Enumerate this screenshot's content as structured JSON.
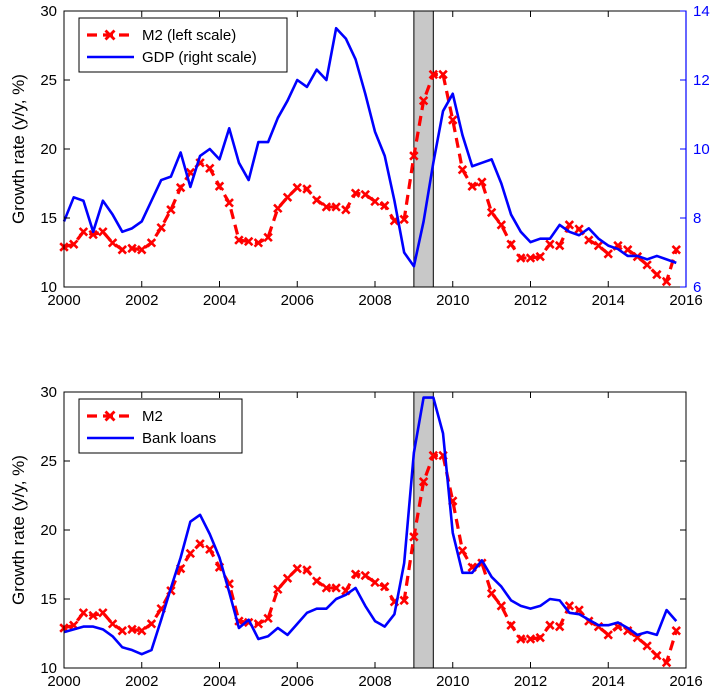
{
  "chart_data": [
    {
      "type": "line",
      "ylabel": "Growth rate (y/y, %)",
      "y2label": "",
      "xlim": [
        2000,
        2016
      ],
      "ylim": [
        10,
        30
      ],
      "y2lim": [
        6,
        14
      ],
      "xticks": [
        "2000",
        "2002",
        "2004",
        "2006",
        "2008",
        "2010",
        "2012",
        "2014",
        "2016"
      ],
      "yticks": [
        "10",
        "15",
        "20",
        "25",
        "30"
      ],
      "y2ticks": [
        "6",
        "8",
        "10",
        "12",
        "14"
      ],
      "shade": [
        2009.0,
        2009.5
      ],
      "legend_position": "top-left",
      "colors": {
        "m2": "#ff0000",
        "gdp": "#0000ff",
        "shade": "#c8c8c8"
      },
      "series": [
        {
          "name": "M2 (left scale)",
          "axis": "left",
          "marker": "x",
          "style": "dashed",
          "x": [
            2000.0,
            2000.25,
            2000.5,
            2000.75,
            2001.0,
            2001.25,
            2001.5,
            2001.75,
            2002.0,
            2002.25,
            2002.5,
            2002.75,
            2003.0,
            2003.25,
            2003.5,
            2003.75,
            2004.0,
            2004.25,
            2004.5,
            2004.75,
            2005.0,
            2005.25,
            2005.5,
            2005.75,
            2006.0,
            2006.25,
            2006.5,
            2006.75,
            2007.0,
            2007.25,
            2007.5,
            2007.75,
            2008.0,
            2008.25,
            2008.5,
            2008.75,
            2009.0,
            2009.25,
            2009.5,
            2009.75,
            2010.0,
            2010.25,
            2010.5,
            2010.75,
            2011.0,
            2011.25,
            2011.5,
            2011.75,
            2012.0,
            2012.25,
            2012.5,
            2012.75,
            2013.0,
            2013.25,
            2013.5,
            2013.75,
            2014.0,
            2014.25,
            2014.5,
            2014.75,
            2015.0,
            2015.25,
            2015.5,
            2015.75
          ],
          "values": [
            12.9,
            13.1,
            14.0,
            13.8,
            14.0,
            13.2,
            12.7,
            12.8,
            12.7,
            13.2,
            14.3,
            15.6,
            17.2,
            18.3,
            19.0,
            18.6,
            17.3,
            16.1,
            13.4,
            13.3,
            13.2,
            13.6,
            15.7,
            16.5,
            17.2,
            17.1,
            16.3,
            15.8,
            15.8,
            15.6,
            16.8,
            16.7,
            16.2,
            15.9,
            14.8,
            14.9,
            19.5,
            23.5,
            25.4,
            25.4,
            22.1,
            18.5,
            17.3,
            17.6,
            15.4,
            14.5,
            13.1,
            12.1,
            12.1,
            12.2,
            13.1,
            13.0,
            14.5,
            14.2,
            13.4,
            13.0,
            12.4,
            13.0,
            12.7,
            12.2,
            11.6,
            10.9,
            10.4,
            12.7
          ]
        },
        {
          "name": "GDP (right scale)",
          "axis": "right",
          "marker": "none",
          "style": "solid",
          "x": [
            2000.0,
            2000.25,
            2000.5,
            2000.75,
            2001.0,
            2001.25,
            2001.5,
            2001.75,
            2002.0,
            2002.25,
            2002.5,
            2002.75,
            2003.0,
            2003.25,
            2003.5,
            2003.75,
            2004.0,
            2004.25,
            2004.5,
            2004.75,
            2005.0,
            2005.25,
            2005.5,
            2005.75,
            2006.0,
            2006.25,
            2006.5,
            2006.75,
            2007.0,
            2007.25,
            2007.5,
            2007.75,
            2008.0,
            2008.25,
            2008.5,
            2008.75,
            2009.0,
            2009.25,
            2009.5,
            2009.75,
            2010.0,
            2010.25,
            2010.5,
            2010.75,
            2011.0,
            2011.25,
            2011.5,
            2011.75,
            2012.0,
            2012.25,
            2012.5,
            2012.75,
            2013.0,
            2013.25,
            2013.5,
            2013.75,
            2014.0,
            2014.25,
            2014.5,
            2014.75,
            2015.0,
            2015.25,
            2015.5,
            2015.75
          ],
          "values": [
            7.9,
            8.6,
            8.5,
            7.6,
            8.5,
            8.1,
            7.6,
            7.7,
            7.9,
            8.5,
            9.1,
            9.2,
            9.9,
            8.9,
            9.8,
            10.0,
            9.7,
            10.6,
            9.6,
            9.1,
            10.2,
            10.2,
            10.9,
            11.4,
            12.0,
            11.8,
            12.3,
            12.0,
            13.5,
            13.2,
            12.6,
            11.6,
            10.5,
            9.8,
            8.5,
            7.0,
            6.6,
            7.9,
            9.6,
            11.1,
            11.6,
            10.4,
            9.5,
            9.6,
            9.7,
            9.0,
            8.1,
            7.6,
            7.3,
            7.4,
            7.4,
            7.8,
            7.6,
            7.5,
            7.7,
            7.4,
            7.2,
            7.1,
            6.9,
            6.9,
            6.8,
            6.9,
            6.8,
            6.7
          ]
        }
      ]
    },
    {
      "type": "line",
      "ylabel": "Growth rate (y/y, %)",
      "xlim": [
        2000,
        2016
      ],
      "ylim": [
        10,
        30
      ],
      "xticks": [
        "2000",
        "2002",
        "2004",
        "2006",
        "2008",
        "2010",
        "2012",
        "2014",
        "2016"
      ],
      "yticks": [
        "10",
        "15",
        "20",
        "25",
        "30"
      ],
      "shade": [
        2009.0,
        2009.5
      ],
      "legend_position": "top-left",
      "colors": {
        "m2": "#ff0000",
        "loans": "#0000ff",
        "shade": "#c8c8c8"
      },
      "series": [
        {
          "name": "M2",
          "axis": "left",
          "marker": "x",
          "style": "dashed",
          "x": [
            2000.0,
            2000.25,
            2000.5,
            2000.75,
            2001.0,
            2001.25,
            2001.5,
            2001.75,
            2002.0,
            2002.25,
            2002.5,
            2002.75,
            2003.0,
            2003.25,
            2003.5,
            2003.75,
            2004.0,
            2004.25,
            2004.5,
            2004.75,
            2005.0,
            2005.25,
            2005.5,
            2005.75,
            2006.0,
            2006.25,
            2006.5,
            2006.75,
            2007.0,
            2007.25,
            2007.5,
            2007.75,
            2008.0,
            2008.25,
            2008.5,
            2008.75,
            2009.0,
            2009.25,
            2009.5,
            2009.75,
            2010.0,
            2010.25,
            2010.5,
            2010.75,
            2011.0,
            2011.25,
            2011.5,
            2011.75,
            2012.0,
            2012.25,
            2012.5,
            2012.75,
            2013.0,
            2013.25,
            2013.5,
            2013.75,
            2014.0,
            2014.25,
            2014.5,
            2014.75,
            2015.0,
            2015.25,
            2015.5,
            2015.75
          ],
          "values": [
            12.9,
            13.1,
            14.0,
            13.8,
            14.0,
            13.2,
            12.7,
            12.8,
            12.7,
            13.2,
            14.3,
            15.6,
            17.2,
            18.3,
            19.0,
            18.6,
            17.3,
            16.1,
            13.4,
            13.3,
            13.2,
            13.6,
            15.7,
            16.5,
            17.2,
            17.1,
            16.3,
            15.8,
            15.8,
            15.6,
            16.8,
            16.7,
            16.2,
            15.9,
            14.8,
            14.9,
            19.5,
            23.5,
            25.4,
            25.4,
            22.1,
            18.5,
            17.3,
            17.6,
            15.4,
            14.5,
            13.1,
            12.1,
            12.1,
            12.2,
            13.1,
            13.0,
            14.5,
            14.2,
            13.4,
            13.0,
            12.4,
            13.0,
            12.7,
            12.2,
            11.6,
            10.9,
            10.4,
            12.7
          ]
        },
        {
          "name": "Bank loans",
          "axis": "left",
          "marker": "none",
          "style": "solid",
          "x": [
            2000.0,
            2000.25,
            2000.5,
            2000.75,
            2001.0,
            2001.25,
            2001.5,
            2001.75,
            2002.0,
            2002.25,
            2002.5,
            2002.75,
            2003.0,
            2003.25,
            2003.5,
            2003.75,
            2004.0,
            2004.25,
            2004.5,
            2004.75,
            2005.0,
            2005.25,
            2005.5,
            2005.75,
            2006.0,
            2006.25,
            2006.5,
            2006.75,
            2007.0,
            2007.25,
            2007.5,
            2007.75,
            2008.0,
            2008.25,
            2008.5,
            2008.75,
            2009.0,
            2009.25,
            2009.5,
            2009.75,
            2010.0,
            2010.25,
            2010.5,
            2010.75,
            2011.0,
            2011.25,
            2011.5,
            2011.75,
            2012.0,
            2012.25,
            2012.5,
            2012.75,
            2013.0,
            2013.25,
            2013.5,
            2013.75,
            2014.0,
            2014.25,
            2014.5,
            2014.75,
            2015.0,
            2015.25,
            2015.5,
            2015.75
          ],
          "values": [
            12.6,
            12.8,
            13.0,
            13.0,
            12.8,
            12.3,
            11.5,
            11.3,
            11.0,
            11.3,
            13.5,
            15.8,
            18.0,
            20.6,
            21.1,
            19.7,
            18.0,
            15.5,
            12.9,
            13.5,
            12.1,
            12.3,
            12.9,
            12.4,
            13.2,
            14.0,
            14.3,
            14.3,
            15.0,
            15.3,
            15.8,
            14.5,
            13.4,
            13.0,
            13.9,
            17.6,
            25.6,
            29.6,
            29.6,
            27.0,
            19.8,
            16.9,
            16.9,
            17.8,
            16.6,
            15.9,
            14.9,
            14.5,
            14.3,
            14.5,
            15.0,
            14.9,
            14.0,
            13.9,
            13.5,
            13.1,
            13.1,
            13.3,
            12.9,
            12.4,
            12.6,
            12.4,
            14.2,
            13.4
          ]
        }
      ]
    }
  ]
}
